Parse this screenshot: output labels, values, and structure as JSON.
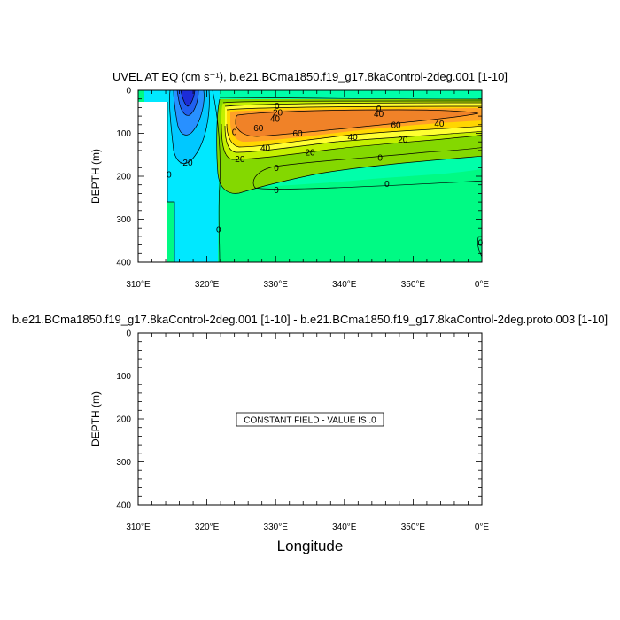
{
  "chart_data": [
    {
      "type": "contour",
      "title": "UVEL AT EQ (cm s⁻¹), b.e21.BCma1850.f19_g17.8kaControl-2deg.001 [1-10]",
      "ylabel": "DEPTH (m)",
      "xlabel": "",
      "xlim": [
        310,
        360
      ],
      "ylim": [
        0,
        400
      ],
      "y_inverted": true,
      "x_ticks": [
        "310°E",
        "320°E",
        "330°E",
        "340°E",
        "350°E",
        "0°E"
      ],
      "y_ticks": [
        "0",
        "100",
        "200",
        "300",
        "400"
      ],
      "contour_interval": 10,
      "contour_labels": [
        {
          "text": "0",
          "x": 330.2,
          "y": 36
        },
        {
          "text": "20",
          "x": 330.3,
          "y": 52
        },
        {
          "text": "40",
          "x": 329.9,
          "y": 66
        },
        {
          "text": "60",
          "x": 327.5,
          "y": 88
        },
        {
          "text": "60",
          "x": 333.2,
          "y": 100
        },
        {
          "text": "40",
          "x": 328.5,
          "y": 134
        },
        {
          "text": "20",
          "x": 335.0,
          "y": 144
        },
        {
          "text": "40",
          "x": 341.2,
          "y": 108
        },
        {
          "text": "20",
          "x": 348.5,
          "y": 114
        },
        {
          "text": "60",
          "x": 347.5,
          "y": 80
        },
        {
          "text": "40",
          "x": 353.8,
          "y": 77
        },
        {
          "text": "40",
          "x": 345.0,
          "y": 55
        },
        {
          "text": "0",
          "x": 345.0,
          "y": 42
        },
        {
          "text": "0",
          "x": 324.0,
          "y": 97
        },
        {
          "text": "20",
          "x": 324.8,
          "y": 160
        },
        {
          "text": "-20",
          "x": 317.0,
          "y": 168
        },
        {
          "text": "0",
          "x": 314.5,
          "y": 196
        },
        {
          "text": "0",
          "x": 330.1,
          "y": 180
        },
        {
          "text": "0",
          "x": 345.2,
          "y": 157
        },
        {
          "text": "0",
          "x": 330.1,
          "y": 232
        },
        {
          "text": "0",
          "x": 346.2,
          "y": 218
        },
        {
          "text": "0",
          "x": 321.7,
          "y": 324
        },
        {
          "text": "0",
          "x": 359.8,
          "y": 355
        }
      ]
    },
    {
      "type": "contour",
      "title": "b.e21.BCma1850.f19_g17.8kaControl-2deg.001 [1-10] - b.e21.BCma1850.f19_g17.8kaControl-2deg.proto.003 [1-10]",
      "ylabel": "DEPTH (m)",
      "xlabel": "Longitude",
      "xlim": [
        310,
        360
      ],
      "ylim": [
        0,
        400
      ],
      "y_inverted": true,
      "x_ticks": [
        "310°E",
        "320°E",
        "330°E",
        "340°E",
        "350°E",
        "0°E"
      ],
      "y_ticks": [
        "0",
        "100",
        "200",
        "300",
        "400"
      ],
      "annotation": "CONSTANT FIELD - VALUE IS .0",
      "constant_value": 0
    }
  ]
}
